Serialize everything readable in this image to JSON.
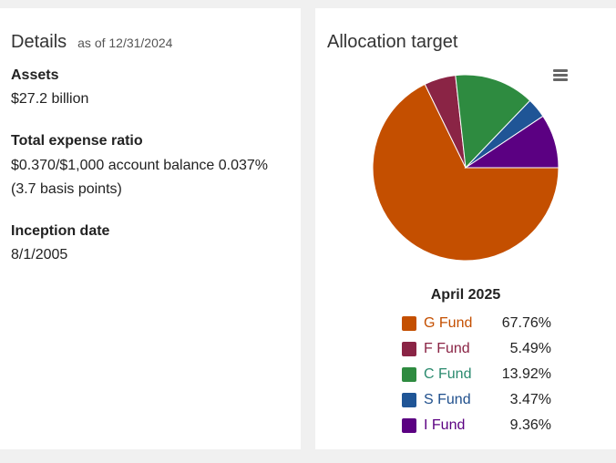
{
  "details": {
    "title": "Details",
    "as_of": "as of 12/31/2024",
    "assets_label": "Assets",
    "assets_value": "$27.2 billion",
    "expense_label": "Total expense ratio",
    "expense_value_1": "$0.370/$1,000 account balance 0.037%",
    "expense_value_2": "(3.7 basis points)",
    "inception_label": "Inception date",
    "inception_value": "8/1/2005"
  },
  "allocation": {
    "title": "Allocation target",
    "menu_icon": "hamburger-menu-icon"
  },
  "chart_data": {
    "type": "pie",
    "title": "April 2025",
    "legend_position": "bottom",
    "categories": [
      "G Fund",
      "F Fund",
      "C Fund",
      "S Fund",
      "I Fund"
    ],
    "values": [
      67.76,
      5.49,
      13.92,
      3.47,
      9.36
    ],
    "labels": [
      "67.76%",
      "5.49%",
      "13.92%",
      "3.47%",
      "9.36%"
    ],
    "colors": [
      "#c44f00",
      "#8a2445",
      "#2e8b40",
      "#1f5596",
      "#5b0082"
    ],
    "text_colors": [
      "#c44f00",
      "#8a2445",
      "#2a8a6e",
      "#1f4f8c",
      "#5b0082"
    ]
  }
}
